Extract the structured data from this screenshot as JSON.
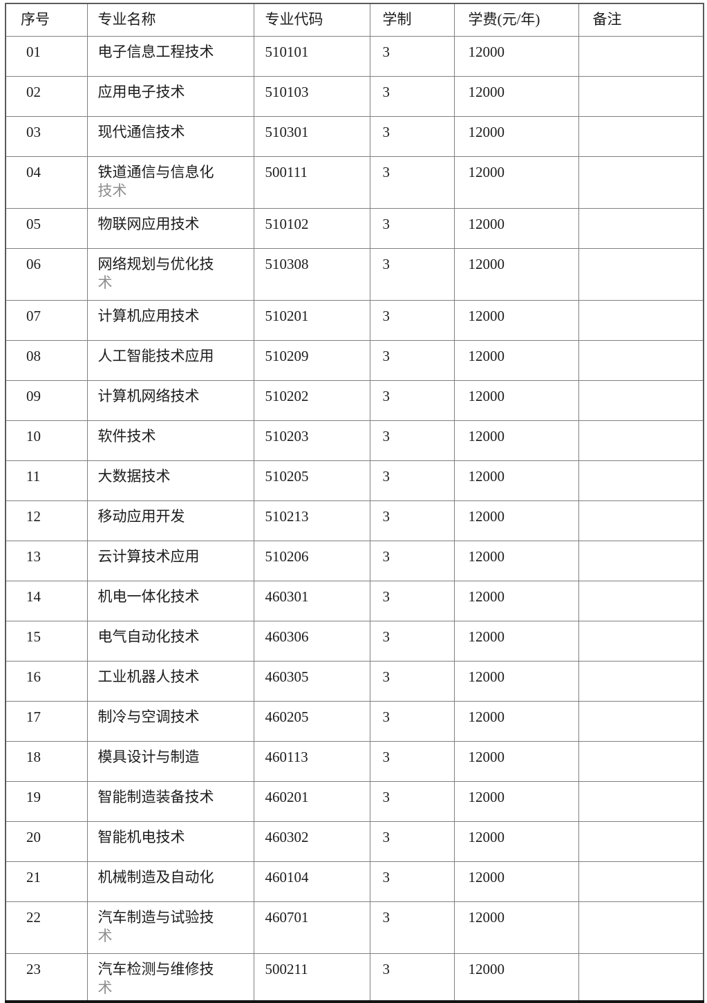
{
  "table": {
    "columns": [
      {
        "key": "no",
        "label": "序号"
      },
      {
        "key": "name",
        "label": "专业名称"
      },
      {
        "key": "code",
        "label": "专业代码"
      },
      {
        "key": "years",
        "label": "学制"
      },
      {
        "key": "tuition",
        "label": "学费(元/年)"
      },
      {
        "key": "remark",
        "label": "备注"
      }
    ],
    "rows": [
      {
        "no": "01",
        "name_lines": [
          "电子信息工程技术"
        ],
        "code": "510101",
        "years": "3",
        "tuition": "12000",
        "remark": "",
        "tall": false
      },
      {
        "no": "02",
        "name_lines": [
          "应用电子技术"
        ],
        "code": "510103",
        "years": "3",
        "tuition": "12000",
        "remark": "",
        "tall": false
      },
      {
        "no": "03",
        "name_lines": [
          "现代通信技术"
        ],
        "code": "510301",
        "years": "3",
        "tuition": "12000",
        "remark": "",
        "tall": false
      },
      {
        "no": "04",
        "name_lines": [
          "铁道通信与信息化",
          "技术"
        ],
        "code": "500111",
        "years": "3",
        "tuition": "12000",
        "remark": "",
        "tall": true
      },
      {
        "no": "05",
        "name_lines": [
          "物联网应用技术"
        ],
        "code": "510102",
        "years": "3",
        "tuition": "12000",
        "remark": "",
        "tall": false
      },
      {
        "no": "06",
        "name_lines": [
          "网络规划与优化技",
          "术"
        ],
        "code": "510308",
        "years": "3",
        "tuition": "12000",
        "remark": "",
        "tall": true
      },
      {
        "no": "07",
        "name_lines": [
          "计算机应用技术"
        ],
        "code": "510201",
        "years": "3",
        "tuition": "12000",
        "remark": "",
        "tall": false
      },
      {
        "no": "08",
        "name_lines": [
          "人工智能技术应用"
        ],
        "code": "510209",
        "years": "3",
        "tuition": "12000",
        "remark": "",
        "tall": false
      },
      {
        "no": "09",
        "name_lines": [
          "计算机网络技术"
        ],
        "code": "510202",
        "years": "3",
        "tuition": "12000",
        "remark": "",
        "tall": false
      },
      {
        "no": "10",
        "name_lines": [
          "软件技术"
        ],
        "code": "510203",
        "years": "3",
        "tuition": "12000",
        "remark": "",
        "tall": false
      },
      {
        "no": "11",
        "name_lines": [
          "大数据技术"
        ],
        "code": "510205",
        "years": "3",
        "tuition": "12000",
        "remark": "",
        "tall": false
      },
      {
        "no": "12",
        "name_lines": [
          "移动应用开发"
        ],
        "code": "510213",
        "years": "3",
        "tuition": "12000",
        "remark": "",
        "tall": false
      },
      {
        "no": "13",
        "name_lines": [
          "云计算技术应用"
        ],
        "code": "510206",
        "years": "3",
        "tuition": "12000",
        "remark": "",
        "tall": false
      },
      {
        "no": "14",
        "name_lines": [
          "机电一体化技术"
        ],
        "code": "460301",
        "years": "3",
        "tuition": "12000",
        "remark": "",
        "tall": false
      },
      {
        "no": "15",
        "name_lines": [
          "电气自动化技术"
        ],
        "code": "460306",
        "years": "3",
        "tuition": "12000",
        "remark": "",
        "tall": false
      },
      {
        "no": "16",
        "name_lines": [
          "工业机器人技术"
        ],
        "code": "460305",
        "years": "3",
        "tuition": "12000",
        "remark": "",
        "tall": false
      },
      {
        "no": "17",
        "name_lines": [
          "制冷与空调技术"
        ],
        "code": "460205",
        "years": "3",
        "tuition": "12000",
        "remark": "",
        "tall": false
      },
      {
        "no": "18",
        "name_lines": [
          "模具设计与制造"
        ],
        "code": "460113",
        "years": "3",
        "tuition": "12000",
        "remark": "",
        "tall": false
      },
      {
        "no": "19",
        "name_lines": [
          "智能制造装备技术"
        ],
        "code": "460201",
        "years": "3",
        "tuition": "12000",
        "remark": "",
        "tall": false
      },
      {
        "no": "20",
        "name_lines": [
          "智能机电技术"
        ],
        "code": "460302",
        "years": "3",
        "tuition": "12000",
        "remark": "",
        "tall": false
      },
      {
        "no": "21",
        "name_lines": [
          "机械制造及自动化"
        ],
        "code": "460104",
        "years": "3",
        "tuition": "12000",
        "remark": "",
        "tall": false
      },
      {
        "no": "22",
        "name_lines": [
          "汽车制造与试验技",
          "术"
        ],
        "code": "460701",
        "years": "3",
        "tuition": "12000",
        "remark": "",
        "tall": true
      },
      {
        "no": "23",
        "name_lines": [
          "汽车检测与维修技",
          "术"
        ],
        "code": "500211",
        "years": "3",
        "tuition": "12000",
        "remark": "",
        "tall": false
      }
    ]
  },
  "colors": {
    "grid": "#7f7f7f",
    "outer": "#5a5a5a",
    "outer-bottom": "#141414",
    "text": "#1c1c1c",
    "wrap-text": "#8e8e8e",
    "background": "#ffffff"
  }
}
